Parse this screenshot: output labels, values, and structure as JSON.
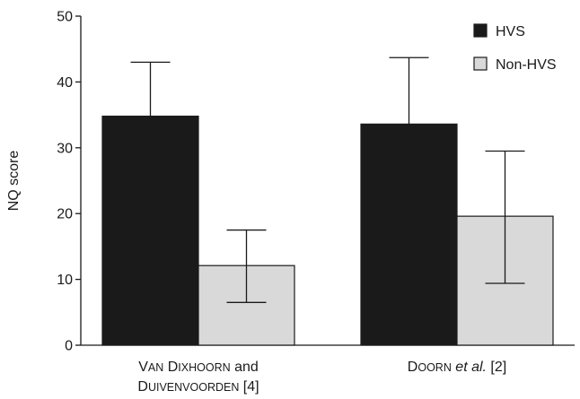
{
  "chart_data": {
    "type": "bar",
    "ylabel": "NQ score",
    "xlabel": "",
    "ylim": [
      0,
      50
    ],
    "yticks": [
      0,
      10,
      20,
      30,
      40,
      50
    ],
    "categories": [
      {
        "lines": [
          [
            {
              "t": "V",
              "sc": false
            },
            {
              "t": "AN",
              "sc": true
            },
            {
              "t": " D",
              "sc": false
            },
            {
              "t": "IXHOORN",
              "sc": true
            },
            {
              "t": " and",
              "sc": false
            }
          ],
          [
            {
              "t": "D",
              "sc": false
            },
            {
              "t": "UIVENVOORDEN",
              "sc": true
            },
            {
              "t": " [4]",
              "sc": false
            }
          ]
        ]
      },
      {
        "lines": [
          [
            {
              "t": "D",
              "sc": false
            },
            {
              "t": "OORN",
              "sc": true
            },
            {
              "t": " ",
              "sc": false
            },
            {
              "t": "et al.",
              "sc": false,
              "italic": true
            },
            {
              "t": " [2]",
              "sc": false
            }
          ]
        ]
      }
    ],
    "series": [
      {
        "name": "HVS",
        "color": "#1a1a1a",
        "values": [
          34.8,
          33.6
        ],
        "error_low": [
          34.8,
          33.6
        ],
        "error_high": [
          43.0,
          43.7
        ]
      },
      {
        "name": "Non-HVS",
        "color": "#d9d9d9",
        "values": [
          12.1,
          19.6
        ],
        "error_low": [
          6.5,
          9.4
        ],
        "error_high": [
          17.5,
          29.5
        ]
      }
    ],
    "legend": {
      "position": "top-right"
    }
  }
}
